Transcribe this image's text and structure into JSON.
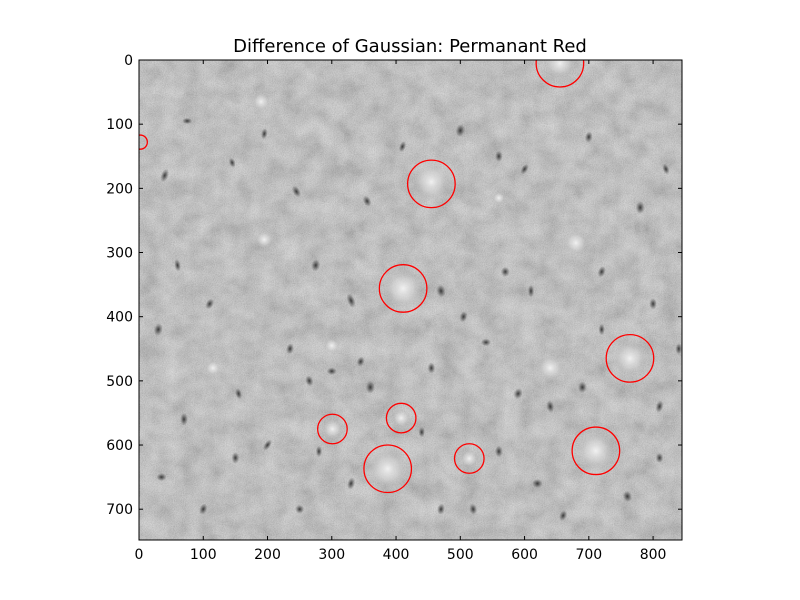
{
  "figure": {
    "title": "Difference of Gaussian: Permanant Red",
    "image": {
      "x_range": [
        0,
        845
      ],
      "y_range": [
        0,
        748
      ],
      "background_color": "#8c8c8c",
      "texture": "grayscale microscopy tissue with dark cell nuclei"
    },
    "x_axis": {
      "ticks": [
        0,
        100,
        200,
        300,
        400,
        500,
        600,
        700,
        800
      ],
      "tick_labels": [
        "0",
        "100",
        "200",
        "300",
        "400",
        "500",
        "600",
        "700",
        "800"
      ]
    },
    "y_axis": {
      "ticks": [
        0,
        100,
        200,
        300,
        400,
        500,
        600,
        700
      ],
      "tick_labels": [
        "0",
        "100",
        "200",
        "300",
        "400",
        "500",
        "600",
        "700"
      ],
      "inverted": true
    },
    "detections": {
      "color": "#ff0000",
      "blobs": [
        {
          "x": 655,
          "y": 5,
          "r": 37
        },
        {
          "x": 2,
          "y": 128,
          "r": 11
        },
        {
          "x": 455,
          "y": 193,
          "r": 37
        },
        {
          "x": 411,
          "y": 356,
          "r": 37
        },
        {
          "x": 764,
          "y": 465,
          "r": 37
        },
        {
          "x": 408,
          "y": 558,
          "r": 23
        },
        {
          "x": 301,
          "y": 575,
          "r": 23
        },
        {
          "x": 387,
          "y": 637,
          "r": 37
        },
        {
          "x": 514,
          "y": 621,
          "r": 23
        },
        {
          "x": 711,
          "y": 609,
          "r": 37
        }
      ]
    },
    "bright_spots": [
      {
        "x": 655,
        "y": 5,
        "r": 25
      },
      {
        "x": 455,
        "y": 190,
        "r": 28
      },
      {
        "x": 411,
        "y": 356,
        "r": 30
      },
      {
        "x": 764,
        "y": 465,
        "r": 26
      },
      {
        "x": 408,
        "y": 558,
        "r": 14
      },
      {
        "x": 301,
        "y": 575,
        "r": 16
      },
      {
        "x": 387,
        "y": 637,
        "r": 30
      },
      {
        "x": 514,
        "y": 621,
        "r": 14
      },
      {
        "x": 711,
        "y": 609,
        "r": 28
      },
      {
        "x": 195,
        "y": 280,
        "r": 14
      },
      {
        "x": 560,
        "y": 215,
        "r": 10
      },
      {
        "x": 680,
        "y": 285,
        "r": 18
      },
      {
        "x": 190,
        "y": 65,
        "r": 14
      },
      {
        "x": 115,
        "y": 480,
        "r": 12
      },
      {
        "x": 640,
        "y": 480,
        "r": 20
      },
      {
        "x": 300,
        "y": 445,
        "r": 12
      }
    ],
    "nuclei": [
      {
        "x": 40,
        "y": 180,
        "rx": 6,
        "ry": 11,
        "rot": 20
      },
      {
        "x": 60,
        "y": 320,
        "rx": 5,
        "ry": 10,
        "rot": -10
      },
      {
        "x": 75,
        "y": 95,
        "rx": 8,
        "ry": 5,
        "rot": 0
      },
      {
        "x": 110,
        "y": 380,
        "rx": 6,
        "ry": 9,
        "rot": 30
      },
      {
        "x": 145,
        "y": 160,
        "rx": 5,
        "ry": 8,
        "rot": -20
      },
      {
        "x": 30,
        "y": 420,
        "rx": 7,
        "ry": 10,
        "rot": 15
      },
      {
        "x": 70,
        "y": 560,
        "rx": 6,
        "ry": 10,
        "rot": 0
      },
      {
        "x": 155,
        "y": 520,
        "rx": 5,
        "ry": 9,
        "rot": -15
      },
      {
        "x": 35,
        "y": 650,
        "rx": 8,
        "ry": 6,
        "rot": 0
      },
      {
        "x": 100,
        "y": 700,
        "rx": 6,
        "ry": 9,
        "rot": 20
      },
      {
        "x": 200,
        "y": 600,
        "rx": 5,
        "ry": 10,
        "rot": 35
      },
      {
        "x": 250,
        "y": 700,
        "rx": 7,
        "ry": 7,
        "rot": 0
      },
      {
        "x": 195,
        "y": 115,
        "rx": 5,
        "ry": 9,
        "rot": 10
      },
      {
        "x": 245,
        "y": 205,
        "rx": 6,
        "ry": 10,
        "rot": -30
      },
      {
        "x": 275,
        "y": 320,
        "rx": 7,
        "ry": 10,
        "rot": 10
      },
      {
        "x": 330,
        "y": 375,
        "rx": 6,
        "ry": 12,
        "rot": -20
      },
      {
        "x": 300,
        "y": 485,
        "rx": 8,
        "ry": 6,
        "rot": 0
      },
      {
        "x": 345,
        "y": 470,
        "rx": 6,
        "ry": 8,
        "rot": 20
      },
      {
        "x": 360,
        "y": 510,
        "rx": 7,
        "ry": 10,
        "rot": 0
      },
      {
        "x": 265,
        "y": 500,
        "rx": 6,
        "ry": 9,
        "rot": -15
      },
      {
        "x": 330,
        "y": 660,
        "rx": 6,
        "ry": 10,
        "rot": 15
      },
      {
        "x": 280,
        "y": 610,
        "rx": 5,
        "ry": 9,
        "rot": 0
      },
      {
        "x": 410,
        "y": 135,
        "rx": 5,
        "ry": 9,
        "rot": 20
      },
      {
        "x": 355,
        "y": 220,
        "rx": 6,
        "ry": 9,
        "rot": -25
      },
      {
        "x": 500,
        "y": 110,
        "rx": 7,
        "ry": 10,
        "rot": 10
      },
      {
        "x": 560,
        "y": 150,
        "rx": 6,
        "ry": 9,
        "rot": 0
      },
      {
        "x": 600,
        "y": 170,
        "rx": 5,
        "ry": 9,
        "rot": 30
      },
      {
        "x": 700,
        "y": 120,
        "rx": 6,
        "ry": 9,
        "rot": 10
      },
      {
        "x": 780,
        "y": 230,
        "rx": 7,
        "ry": 10,
        "rot": 0
      },
      {
        "x": 820,
        "y": 170,
        "rx": 5,
        "ry": 9,
        "rot": -20
      },
      {
        "x": 470,
        "y": 360,
        "rx": 7,
        "ry": 10,
        "rot": -10
      },
      {
        "x": 505,
        "y": 400,
        "rx": 6,
        "ry": 9,
        "rot": 15
      },
      {
        "x": 570,
        "y": 330,
        "rx": 7,
        "ry": 8,
        "rot": 0
      },
      {
        "x": 610,
        "y": 360,
        "rx": 5,
        "ry": 10,
        "rot": 0
      },
      {
        "x": 720,
        "y": 330,
        "rx": 6,
        "ry": 9,
        "rot": 20
      },
      {
        "x": 800,
        "y": 380,
        "rx": 6,
        "ry": 9,
        "rot": 0
      },
      {
        "x": 455,
        "y": 480,
        "rx": 6,
        "ry": 9,
        "rot": 0
      },
      {
        "x": 540,
        "y": 440,
        "rx": 8,
        "ry": 6,
        "rot": 0
      },
      {
        "x": 590,
        "y": 520,
        "rx": 7,
        "ry": 9,
        "rot": 20
      },
      {
        "x": 640,
        "y": 540,
        "rx": 6,
        "ry": 10,
        "rot": -10
      },
      {
        "x": 690,
        "y": 510,
        "rx": 7,
        "ry": 9,
        "rot": 0
      },
      {
        "x": 810,
        "y": 540,
        "rx": 6,
        "ry": 10,
        "rot": 15
      },
      {
        "x": 560,
        "y": 610,
        "rx": 6,
        "ry": 9,
        "rot": 0
      },
      {
        "x": 620,
        "y": 660,
        "rx": 8,
        "ry": 7,
        "rot": 0
      },
      {
        "x": 660,
        "y": 710,
        "rx": 6,
        "ry": 9,
        "rot": 20
      },
      {
        "x": 760,
        "y": 680,
        "rx": 7,
        "ry": 9,
        "rot": -15
      },
      {
        "x": 810,
        "y": 620,
        "rx": 6,
        "ry": 8,
        "rot": 0
      },
      {
        "x": 470,
        "y": 700,
        "rx": 6,
        "ry": 9,
        "rot": 10
      },
      {
        "x": 520,
        "y": 700,
        "rx": 6,
        "ry": 9,
        "rot": -10
      },
      {
        "x": 440,
        "y": 580,
        "rx": 5,
        "ry": 8,
        "rot": 0
      },
      {
        "x": 150,
        "y": 620,
        "rx": 6,
        "ry": 9,
        "rot": 0
      },
      {
        "x": 235,
        "y": 450,
        "rx": 6,
        "ry": 9,
        "rot": 10
      },
      {
        "x": 720,
        "y": 420,
        "rx": 5,
        "ry": 9,
        "rot": 0
      },
      {
        "x": 840,
        "y": 450,
        "rx": 5,
        "ry": 9,
        "rot": 0
      }
    ]
  }
}
